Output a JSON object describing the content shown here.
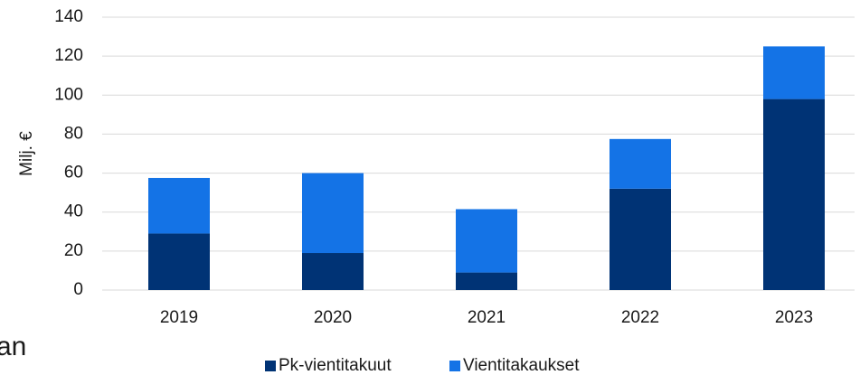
{
  "chart_data": {
    "type": "stacked_bar",
    "ylabel": "Milj. €",
    "categories": [
      "2019",
      "2020",
      "2021",
      "2022",
      "2023"
    ],
    "series": [
      {
        "name": "Pk-vientitakuut",
        "color": "#003375",
        "values": [
          29,
          19,
          9,
          52,
          98
        ]
      },
      {
        "name": "Vientitakaukset",
        "color": "#1473e6",
        "values": [
          28.5,
          41,
          32.5,
          25.5,
          27
        ]
      }
    ],
    "ylim": [
      0,
      140
    ],
    "yticks": [
      0,
      20,
      40,
      60,
      80,
      100,
      120,
      140
    ],
    "grid": true,
    "legend": "bottom",
    "annotations": [
      "an"
    ]
  }
}
